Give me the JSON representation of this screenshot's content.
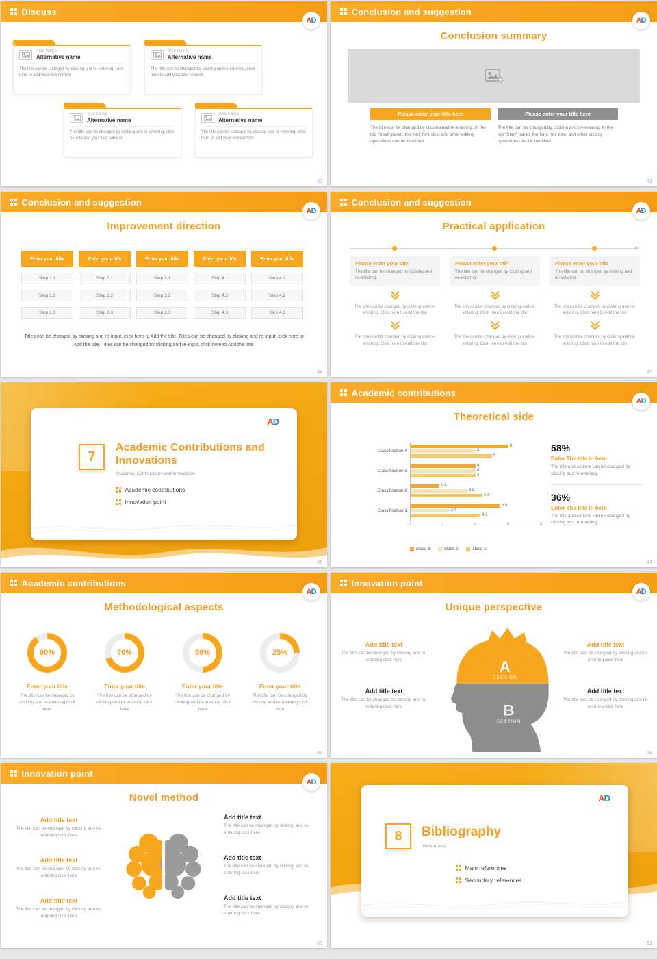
{
  "theme": {
    "accent": "#f6a71f",
    "accent_text": "#f59e23",
    "logo_a_color": "#e8541e",
    "logo_d_color": "#1e88e5"
  },
  "logo": {
    "a": "A",
    "d": "D"
  },
  "s42": {
    "header": "Discuss",
    "page": "42",
    "cards": [
      {
        "name": "Your Name",
        "title": "Alternative name",
        "body": "The title can be changed by clicking and re-entering, click here to add your text content"
      },
      {
        "name": "Your Name",
        "title": "Alternative name",
        "body": "The title can be changed by clicking and re-entering, click here to add your text content"
      },
      {
        "name": "Your Name",
        "title": "Alternative name",
        "body": "The title can be changed by clicking and re-entering, click here to add your text content"
      },
      {
        "name": "Your Name",
        "title": "Alternative name",
        "body": "The title can be changed by clicking and re-entering, click here to add your text content"
      }
    ]
  },
  "s43": {
    "header": "Conclusion and suggestion",
    "title": "Conclusion summary",
    "page": "43",
    "buttons": [
      "Please enter your title here",
      "Please enter your title here"
    ],
    "paragraphs": [
      "The title can be changed by clicking and re-entering. In the top \"Start\" panel, the font, font size, and other editing operations can be modified",
      "The title can be changed by clicking and re-entering. In the top \"Start\" panel, the font, font size, and other editing operations can be modified"
    ]
  },
  "s44": {
    "header": "Conclusion and suggestion",
    "title": "Improvement direction",
    "page": "44",
    "button_label": "Enter your title",
    "columns": [
      {
        "steps": [
          "Step 1.1",
          "Step 1.2",
          "Step 1.3"
        ]
      },
      {
        "steps": [
          "Step 2.1",
          "Step 2.2",
          "Step 2.3"
        ]
      },
      {
        "steps": [
          "Step 3.1",
          "Step 3.2",
          "Step 3.3"
        ]
      },
      {
        "steps": [
          "Step 4.1",
          "Step 4.2",
          "Step 4.3"
        ]
      },
      {
        "steps": [
          "Step 4.1",
          "Step 4.2",
          "Step 4.3"
        ]
      }
    ],
    "paragraph": "Titles can be changed by clicking and re-input, click here to Add the title. Titles can be changed by clicking and re-input, click here to Add the title. Titles can be changed by clicking and re-input, click here to Add the title."
  },
  "s45": {
    "header": "Conclusion and suggestion",
    "title": "Practical application",
    "page": "45",
    "columns": [
      {
        "box_title": "Please enter your title",
        "box_text": "The title can be changed by clicking and re-entering.",
        "step1": "The title can be changed by clicking and re-entering. Click here to Add the title",
        "step2": "The title can be changed by clicking and re-entering. Click here to Add the title"
      },
      {
        "box_title": "Please enter your title",
        "box_text": "The title can be changed by clicking and re-entering.",
        "step1": "The title can be changed by clicking and re-entering. Click here to Add the title",
        "step2": "The title can be changed by clicking and re-entering. Click here to Add the title"
      },
      {
        "box_title": "Please enter your title",
        "box_text": "The title can be changed by clicking and re-entering.",
        "step1": "The title can be changed by clicking and re-entering. Click here to Add the title",
        "step2": "The title can be changed by clicking and re-entering. Click here to Add the title"
      }
    ]
  },
  "s46": {
    "page": "46",
    "number": "7",
    "title": "Academic Contributions and Innovations",
    "subtitle": "Academic Contributions and Innovations",
    "bullets": [
      "Academic contributions",
      "Innovation point"
    ]
  },
  "s47": {
    "header": "Academic contributions",
    "title": "Theoretical side",
    "page": "47",
    "chart_data": {
      "type": "bar",
      "orientation": "horizontal",
      "title": "Theoretical side",
      "categories": [
        "Classification 4",
        "Classification 3",
        "Classification 2",
        "Classification 1"
      ],
      "series": [
        {
          "name": "class 3",
          "color": "#f6a62b",
          "values": [
            6,
            4,
            1.8,
            5.5
          ]
        },
        {
          "name": "class 2",
          "color": "#fce3b5",
          "values": [
            4,
            4,
            3.5,
            2.4
          ]
        },
        {
          "name": "class 1",
          "color": "#f8c567",
          "values": [
            5,
            4,
            4.4,
            4.3
          ]
        }
      ],
      "xlim": [
        0,
        8
      ],
      "xticks": [
        0,
        2,
        4,
        6,
        8
      ],
      "legend_position": "bottom"
    },
    "stats": [
      {
        "value": "58%",
        "title": "Enter The title in here",
        "text": "The title and content can be changed by clicking and re-entering."
      },
      {
        "value": "36%",
        "title": "Enter The title in here",
        "text": "The title and content can be changed by clicking and re-entering."
      }
    ]
  },
  "s48": {
    "header": "Academic contributions",
    "title": "Methodological aspects",
    "page": "48",
    "donuts": [
      {
        "percent": 90,
        "label": "90%",
        "title": "Enter your title",
        "text": "The title can be changed by clicking and re-entering click here"
      },
      {
        "percent": 70,
        "label": "70%",
        "title": "Enter your title",
        "text": "The title can be changed by clicking and re-entering click here"
      },
      {
        "percent": 50,
        "label": "50%",
        "title": "Enter your title",
        "text": "The title can be changed by clicking and re-entering click here"
      },
      {
        "percent": 25,
        "label": "25%",
        "title": "Enter your title",
        "text": "The title can be changed by clicking and re-entering click here"
      }
    ]
  },
  "s49": {
    "header": "Innovation point",
    "title": "Unique perspective",
    "page": "49",
    "sections": {
      "a": "A",
      "a_label": "SECTION",
      "b": "B",
      "b_label": "SECTION"
    },
    "left": [
      {
        "title": "Add title text",
        "text": "The title can be changed by clicking and re-entering click here"
      },
      {
        "title": "Add title text",
        "text": "The title can be changed by clicking and re-entering click here"
      }
    ],
    "right": [
      {
        "title": "Add title text",
        "text": "The title can be changed by clicking and re-entering click here"
      },
      {
        "title": "Add title text",
        "text": "The title can be changed by clicking and re-entering click here"
      }
    ]
  },
  "s50": {
    "header": "Innovation point",
    "title": "Novel method",
    "page": "50",
    "left": [
      {
        "title": "Add title text",
        "text": "The title can be changed by clicking and re-entering click here"
      },
      {
        "title": "Add title text",
        "text": "The title can be changed by clicking and re-entering click here"
      },
      {
        "title": "Add title text",
        "text": "The title can be changed by clicking and re-entering click here"
      }
    ],
    "right": [
      {
        "title": "Add title text",
        "text": "The title can be changed by clicking and re-entering click here"
      },
      {
        "title": "Add title text",
        "text": "The title can be changed by clicking and re-entering click here"
      },
      {
        "title": "Add title text",
        "text": "The title can be changed by clicking and re-entering click here"
      }
    ]
  },
  "s51": {
    "page": "51",
    "number": "8",
    "title": "Bibliography",
    "subtitle": "References",
    "bullets": [
      "Main references",
      "Secondary references"
    ]
  }
}
